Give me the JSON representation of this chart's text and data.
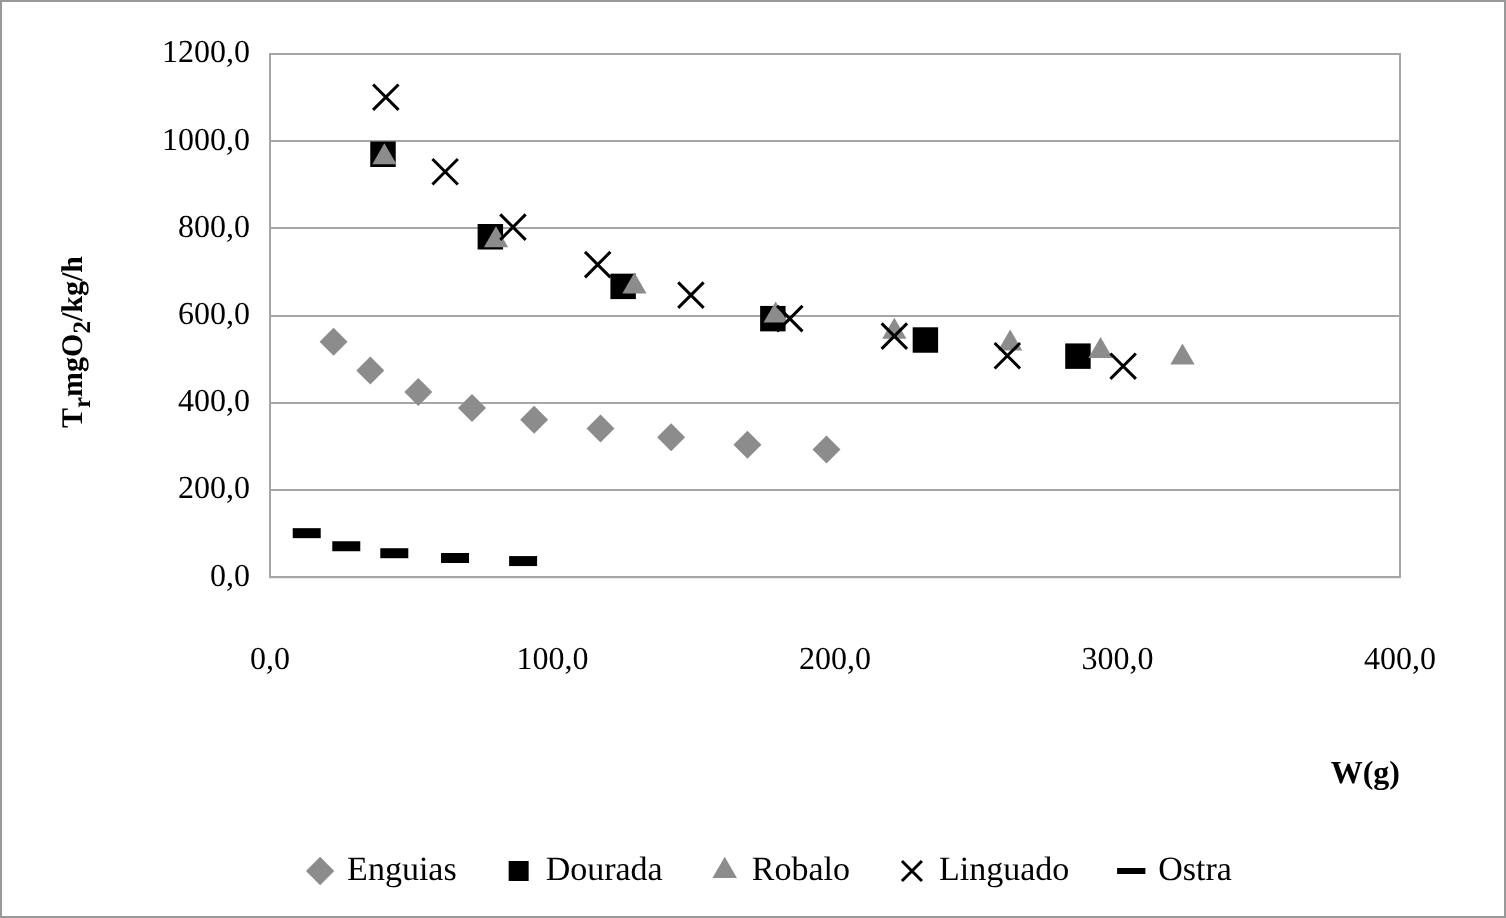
{
  "chart_data": {
    "type": "scatter",
    "xlabel": "W(g)",
    "ylabel": "T$_{r}$mgO$_{2}$/kg/h",
    "xlim": [
      0,
      400
    ],
    "ylim": [
      0,
      1200
    ],
    "xticks": [
      {
        "value": 0,
        "label": "0,0"
      },
      {
        "value": 100,
        "label": "100,0"
      },
      {
        "value": 200,
        "label": "200,0"
      },
      {
        "value": 300,
        "label": "300,0"
      },
      {
        "value": 400,
        "label": "400,0"
      }
    ],
    "yticks": [
      {
        "value": 0,
        "label": "0,0"
      },
      {
        "value": 200,
        "label": "200,0"
      },
      {
        "value": 400,
        "label": "400,0"
      },
      {
        "value": 600,
        "label": "600,0"
      },
      {
        "value": 800,
        "label": "800,0"
      },
      {
        "value": 1000,
        "label": "1000,0"
      },
      {
        "value": 1200,
        "label": "1200,0"
      }
    ],
    "grid": "y",
    "legend": "bottom",
    "series": [
      {
        "name": "Enguias",
        "color": "#8c8c8c",
        "marker": "diamond",
        "x": [
          22.5,
          35.5,
          52.5,
          71.5,
          93.5,
          117,
          142,
          169,
          197
        ],
        "values": [
          540,
          474,
          425,
          388,
          361,
          341,
          321,
          304,
          293
        ]
      },
      {
        "name": "Dourada",
        "color": "#000000",
        "marker": "square",
        "x": [
          40,
          78,
          125,
          178,
          232,
          286
        ],
        "values": [
          970,
          781,
          667,
          593,
          544,
          507
        ]
      },
      {
        "name": "Robalo",
        "color": "#8c8c8c",
        "marker": "triangle",
        "x": [
          40.5,
          80,
          129,
          179,
          221,
          262,
          294,
          323
        ],
        "values": [
          963,
          773,
          667,
          600,
          563,
          536,
          519,
          504
        ]
      },
      {
        "name": "Linguado",
        "color": "#000000",
        "marker": "cross",
        "x": [
          41,
          62,
          86,
          116,
          149,
          184,
          221,
          261,
          302
        ],
        "values": [
          1101,
          930,
          803,
          717,
          647,
          593,
          553,
          508,
          484
        ]
      },
      {
        "name": "Ostra",
        "color": "#000000",
        "x": [
          13,
          27,
          44,
          65.5,
          89.6
        ],
        "values": [
          101,
          71,
          55,
          44,
          37
        ]
      }
    ]
  }
}
